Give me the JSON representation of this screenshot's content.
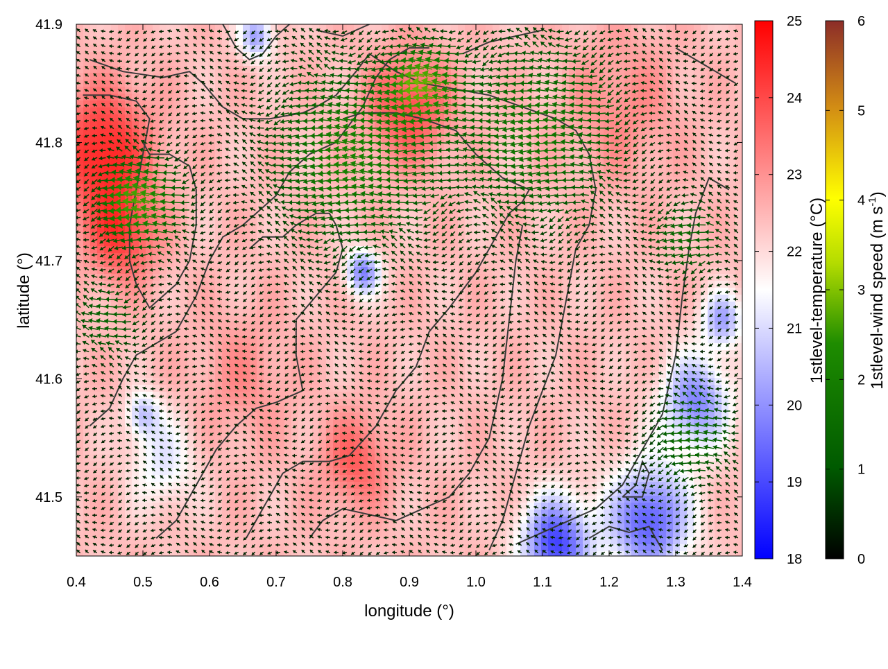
{
  "chart_data": {
    "type": "heatmap",
    "title": "",
    "xlabel": "longitude (°)",
    "ylabel": "latitude (°)",
    "xlim": [
      0.4,
      1.4
    ],
    "ylim": [
      41.45,
      41.9
    ],
    "x_ticks": [
      "0.4",
      "0.5",
      "0.6",
      "0.7",
      "0.8",
      "0.9",
      "1.0",
      "1.1",
      "1.2",
      "1.3",
      "1.4"
    ],
    "y_ticks": [
      "41.5",
      "41.6",
      "41.7",
      "41.8",
      "41.9"
    ],
    "temperature_colorbar": {
      "label": "1stlevel-temperature (°C)",
      "range": [
        18,
        25
      ],
      "ticks": [
        "18",
        "19",
        "20",
        "21",
        "22",
        "23",
        "24",
        "25"
      ],
      "colors": [
        "#0000ff",
        "#ffffff",
        "#ff0000"
      ]
    },
    "wind_colorbar": {
      "label_main": "1stlevel-wind speed (m s",
      "label_exp": "-1",
      "label_end": ")",
      "range": [
        0,
        6
      ],
      "ticks": [
        "0",
        "1",
        "2",
        "3",
        "4",
        "5",
        "6"
      ],
      "colors": [
        "#000000",
        "#005a00",
        "#1e8c00",
        "#b4dc00",
        "#ffff00",
        "#d28c14",
        "#8c2d28"
      ]
    },
    "temperature_field": {
      "background": 22.4,
      "hotspots": [
        {
          "lon": 0.44,
          "lat": 41.79,
          "value": 24.6,
          "radius": 0.07
        },
        {
          "lon": 0.47,
          "lat": 41.72,
          "value": 24.0,
          "radius": 0.05
        },
        {
          "lon": 0.9,
          "lat": 41.83,
          "value": 24.0,
          "radius": 0.06
        },
        {
          "lon": 0.82,
          "lat": 41.53,
          "value": 23.7,
          "radius": 0.05
        },
        {
          "lon": 1.22,
          "lat": 41.83,
          "value": 23.1,
          "radius": 0.08
        },
        {
          "lon": 0.65,
          "lat": 41.6,
          "value": 23.0,
          "radius": 0.07
        },
        {
          "lon": 0.53,
          "lat": 41.53,
          "value": 21.2,
          "radius": 0.05
        },
        {
          "lon": 0.5,
          "lat": 41.57,
          "value": 20.8,
          "radius": 0.025
        },
        {
          "lon": 0.83,
          "lat": 41.69,
          "value": 19.8,
          "radius": 0.025
        },
        {
          "lon": 0.67,
          "lat": 41.89,
          "value": 20.2,
          "radius": 0.025
        },
        {
          "lon": 1.33,
          "lat": 41.58,
          "value": 19.8,
          "radius": 0.05
        },
        {
          "lon": 1.26,
          "lat": 41.48,
          "value": 19.2,
          "radius": 0.06
        },
        {
          "lon": 1.12,
          "lat": 41.46,
          "value": 18.9,
          "radius": 0.05
        },
        {
          "lon": 1.37,
          "lat": 41.65,
          "value": 20.3,
          "radius": 0.03
        }
      ]
    },
    "wind_field": {
      "direction": "from east",
      "background_speed": 0.4,
      "jets": [
        {
          "lon": 0.5,
          "lat": 41.75,
          "speed": 2.3,
          "radius": 0.06
        },
        {
          "lon": 0.82,
          "lat": 41.79,
          "speed": 1.8,
          "radius": 0.12
        },
        {
          "lon": 0.93,
          "lat": 41.85,
          "speed": 2.1,
          "radius": 0.05
        },
        {
          "lon": 1.1,
          "lat": 41.81,
          "speed": 1.6,
          "radius": 0.12
        },
        {
          "lon": 1.32,
          "lat": 41.72,
          "speed": 1.3,
          "radius": 0.05
        },
        {
          "lon": 1.33,
          "lat": 41.55,
          "speed": 1.4,
          "radius": 0.06
        },
        {
          "lon": 0.45,
          "lat": 41.65,
          "speed": 1.2,
          "radius": 0.05
        }
      ]
    },
    "contour_lines": [
      [
        [
          0.42,
          41.87
        ],
        [
          0.47,
          41.86
        ],
        [
          0.53,
          41.855
        ],
        [
          0.57,
          41.86
        ],
        [
          0.59,
          41.85
        ],
        [
          0.62,
          41.83
        ],
        [
          0.65,
          41.82
        ],
        [
          0.69,
          41.82
        ],
        [
          0.74,
          41.825
        ],
        [
          0.76,
          41.83
        ],
        [
          0.79,
          41.84
        ],
        [
          0.82,
          41.86
        ],
        [
          0.84,
          41.875
        ],
        [
          0.88,
          41.86
        ],
        [
          0.92,
          41.85
        ],
        [
          0.97,
          41.845
        ],
        [
          1.02,
          41.84
        ],
        [
          1.07,
          41.83
        ],
        [
          1.12,
          41.82
        ],
        [
          1.15,
          41.81
        ],
        [
          1.17,
          41.79
        ],
        [
          1.18,
          41.76
        ],
        [
          1.17,
          41.73
        ],
        [
          1.15,
          41.71
        ],
        [
          1.14,
          41.68
        ],
        [
          1.13,
          41.65
        ],
        [
          1.12,
          41.62
        ],
        [
          1.1,
          41.59
        ],
        [
          1.08,
          41.56
        ],
        [
          1.06,
          41.52
        ],
        [
          1.04,
          41.48
        ],
        [
          1.02,
          41.455
        ]
      ],
      [
        [
          0.41,
          41.84
        ],
        [
          0.45,
          41.84
        ],
        [
          0.49,
          41.835
        ],
        [
          0.51,
          41.82
        ],
        [
          0.5,
          41.79
        ],
        [
          0.49,
          41.76
        ],
        [
          0.48,
          41.73
        ],
        [
          0.48,
          41.7
        ],
        [
          0.49,
          41.68
        ],
        [
          0.51,
          41.66
        ],
        [
          0.55,
          41.68
        ],
        [
          0.57,
          41.7
        ],
        [
          0.58,
          41.73
        ],
        [
          0.58,
          41.76
        ],
        [
          0.57,
          41.78
        ],
        [
          0.54,
          41.79
        ],
        [
          0.51,
          41.79
        ],
        [
          0.5,
          41.8
        ]
      ],
      [
        [
          0.42,
          41.56
        ],
        [
          0.45,
          41.575
        ],
        [
          0.47,
          41.6
        ],
        [
          0.49,
          41.62
        ],
        [
          0.52,
          41.63
        ],
        [
          0.55,
          41.64
        ],
        [
          0.58,
          41.67
        ],
        [
          0.6,
          41.7
        ],
        [
          0.62,
          41.72
        ],
        [
          0.65,
          41.73
        ],
        [
          0.68,
          41.745
        ],
        [
          0.7,
          41.755
        ],
        [
          0.72,
          41.775
        ],
        [
          0.75,
          41.79
        ],
        [
          0.79,
          41.8
        ],
        [
          0.83,
          41.83
        ],
        [
          0.85,
          41.855
        ],
        [
          0.87,
          41.87
        ],
        [
          0.9,
          41.88
        ],
        [
          0.93,
          41.88
        ]
      ],
      [
        [
          0.52,
          41.465
        ],
        [
          0.55,
          41.48
        ],
        [
          0.58,
          41.51
        ],
        [
          0.61,
          41.54
        ],
        [
          0.64,
          41.56
        ],
        [
          0.67,
          41.575
        ],
        [
          0.7,
          41.58
        ],
        [
          0.72,
          41.585
        ],
        [
          0.74,
          41.59
        ],
        [
          0.73,
          41.62
        ],
        [
          0.73,
          41.65
        ],
        [
          0.76,
          41.67
        ],
        [
          0.79,
          41.69
        ],
        [
          0.8,
          41.71
        ],
        [
          0.79,
          41.73
        ],
        [
          0.78,
          41.74
        ],
        [
          0.76,
          41.74
        ],
        [
          0.73,
          41.73
        ],
        [
          0.71,
          41.72
        ],
        [
          0.68,
          41.72
        ],
        [
          0.66,
          41.71
        ]
      ],
      [
        [
          0.655,
          41.465
        ],
        [
          0.68,
          41.49
        ],
        [
          0.71,
          41.52
        ],
        [
          0.74,
          41.53
        ],
        [
          0.78,
          41.53
        ],
        [
          0.81,
          41.535
        ],
        [
          0.85,
          41.56
        ],
        [
          0.88,
          41.59
        ],
        [
          0.91,
          41.61
        ],
        [
          0.93,
          41.64
        ],
        [
          0.96,
          41.66
        ],
        [
          1.0,
          41.69
        ],
        [
          1.03,
          41.72
        ],
        [
          1.05,
          41.74
        ],
        [
          1.07,
          41.75
        ],
        [
          1.08,
          41.76
        ],
        [
          1.06,
          41.765
        ],
        [
          1.04,
          41.77
        ],
        [
          1.0,
          41.79
        ],
        [
          0.97,
          41.81
        ],
        [
          0.92,
          41.82
        ],
        [
          0.88,
          41.825
        ],
        [
          0.83,
          41.825
        ],
        [
          0.8,
          41.82
        ]
      ],
      [
        [
          0.75,
          41.465
        ],
        [
          0.77,
          41.48
        ],
        [
          0.8,
          41.49
        ],
        [
          0.84,
          41.485
        ],
        [
          0.88,
          41.48
        ],
        [
          0.92,
          41.49
        ],
        [
          0.96,
          41.5
        ],
        [
          0.99,
          41.52
        ],
        [
          1.02,
          41.55
        ],
        [
          1.04,
          41.6
        ],
        [
          1.05,
          41.65
        ],
        [
          1.06,
          41.7
        ],
        [
          1.07,
          41.73
        ]
      ],
      [
        [
          1.06,
          41.46
        ],
        [
          1.1,
          41.47
        ],
        [
          1.14,
          41.48
        ],
        [
          1.18,
          41.49
        ],
        [
          1.22,
          41.51
        ],
        [
          1.25,
          41.54
        ],
        [
          1.28,
          41.57
        ],
        [
          1.3,
          41.62
        ],
        [
          1.31,
          41.67
        ],
        [
          1.32,
          41.71
        ],
        [
          1.33,
          41.74
        ],
        [
          1.35,
          41.77
        ],
        [
          1.38,
          41.76
        ]
      ],
      [
        [
          1.17,
          41.465
        ],
        [
          1.2,
          41.475
        ],
        [
          1.23,
          41.47
        ],
        [
          1.26,
          41.475
        ],
        [
          1.28,
          41.455
        ]
      ],
      [
        [
          1.22,
          41.5
        ],
        [
          1.24,
          41.51
        ],
        [
          1.25,
          41.53
        ],
        [
          1.26,
          41.52
        ],
        [
          1.25,
          41.5
        ],
        [
          1.22,
          41.5
        ]
      ],
      [
        [
          0.62,
          41.9
        ],
        [
          0.64,
          41.88
        ],
        [
          0.66,
          41.87
        ],
        [
          0.68,
          41.875
        ],
        [
          0.7,
          41.89
        ],
        [
          0.72,
          41.9
        ]
      ],
      [
        [
          0.76,
          41.895
        ],
        [
          0.8,
          41.89
        ],
        [
          0.84,
          41.9
        ]
      ],
      [
        [
          0.98,
          41.875
        ],
        [
          1.02,
          41.885
        ],
        [
          1.06,
          41.89
        ],
        [
          1.1,
          41.895
        ]
      ],
      [
        [
          1.3,
          41.88
        ],
        [
          1.33,
          41.87
        ],
        [
          1.36,
          41.86
        ],
        [
          1.39,
          41.85
        ]
      ]
    ]
  }
}
